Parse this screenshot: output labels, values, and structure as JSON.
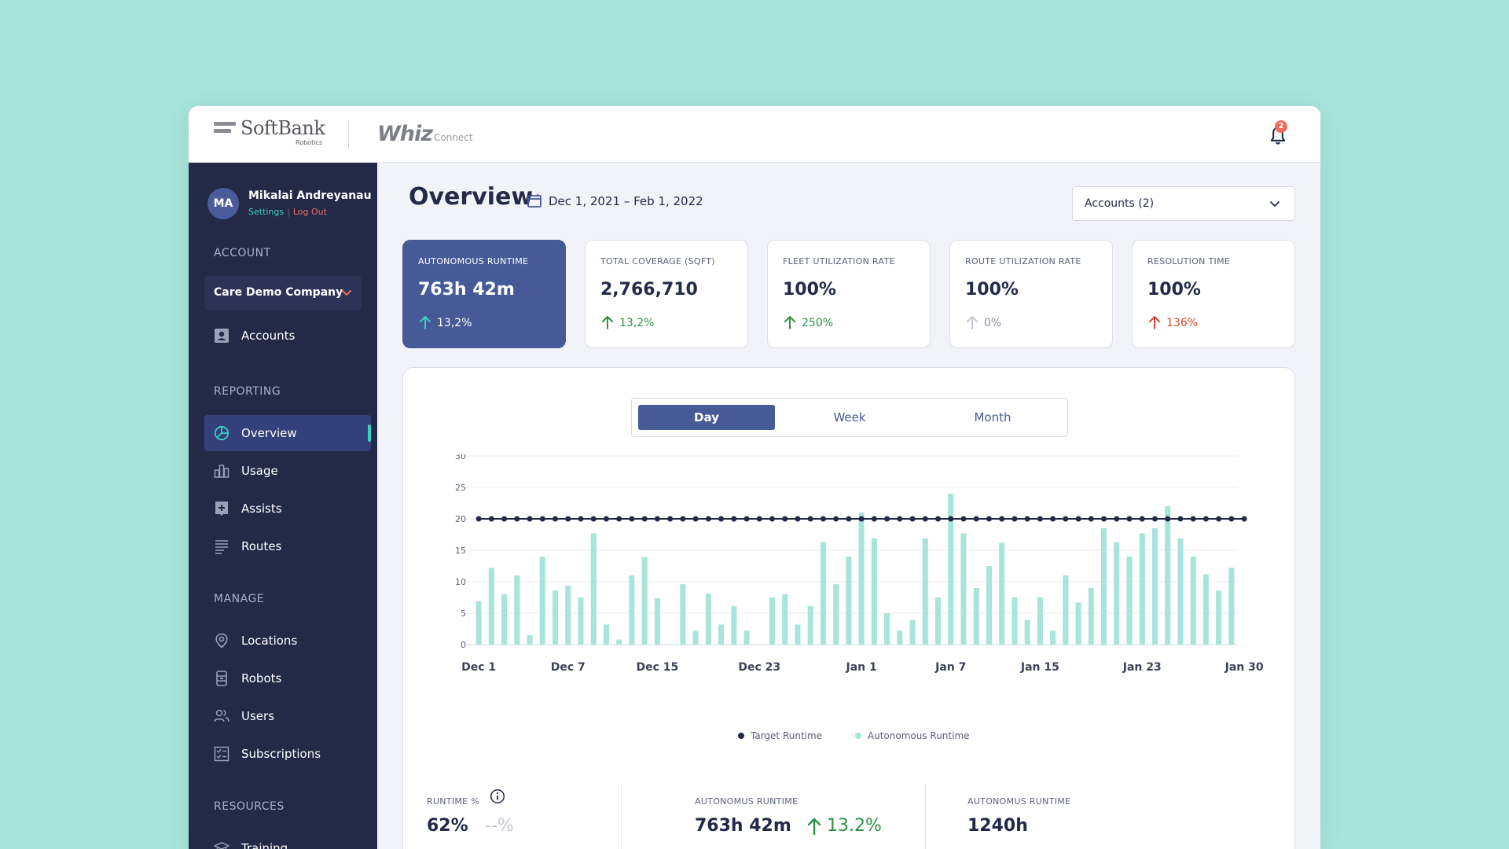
{
  "header": {
    "brand_name": "SoftBank",
    "brand_sub": "Robotics",
    "product_name": "Whiz",
    "product_sub": "Connect",
    "notification_count": "2"
  },
  "user": {
    "initials": "MA",
    "name": "Mikalai Andreyanau",
    "settings_label": "Settings",
    "logout_label": "Log Out"
  },
  "sidebar": {
    "account_title": "ACCOUNT",
    "company": "Care Demo Company",
    "accounts_label": "Accounts",
    "reporting_title": "REPORTING",
    "reporting_items": [
      {
        "label": "Overview",
        "icon": "pie-chart-icon"
      },
      {
        "label": "Usage",
        "icon": "bar-chart-icon"
      },
      {
        "label": "Assists",
        "icon": "plus-square-icon"
      },
      {
        "label": "Routes",
        "icon": "list-icon"
      }
    ],
    "manage_title": "MANAGE",
    "manage_items": [
      {
        "label": "Locations",
        "icon": "location-pin-icon"
      },
      {
        "label": "Robots",
        "icon": "robot-icon"
      },
      {
        "label": "Users",
        "icon": "users-icon"
      },
      {
        "label": "Subscriptions",
        "icon": "subscription-icon"
      }
    ],
    "resources_title": "RESOURCES",
    "training_label": "Training"
  },
  "main": {
    "title": "Overview",
    "date_range": "Dec 1, 2021 – Feb 1, 2022",
    "accounts_select": "Accounts (2)"
  },
  "kpis": [
    {
      "label": "AUTONOMOUS RUNTIME",
      "value": "763h 42m",
      "trend": "13,2%",
      "direction": "up",
      "color": "#ffffff",
      "active": true
    },
    {
      "label": "TOTAL COVERAGE (SQFT)",
      "value": "2,766,710",
      "trend": "13,2%",
      "direction": "up",
      "color": "#2e9146",
      "active": false
    },
    {
      "label": "FLEET UTILIZATION RATE",
      "value": "100%",
      "trend": "250%",
      "direction": "up",
      "color": "#2e9146",
      "active": false
    },
    {
      "label": "ROUTE UTILIZATION RATE",
      "value": "100%",
      "trend": "0%",
      "direction": "neutral",
      "color": "#8a8f9f",
      "active": false
    },
    {
      "label": "RESOLUTION TIME",
      "value": "100%",
      "trend": "136%",
      "direction": "up",
      "color": "#d94836",
      "active": false
    }
  ],
  "period_switch": {
    "day": "Day",
    "week": "Week",
    "month": "Month",
    "selected": "Day"
  },
  "chart_data": {
    "type": "bar",
    "ylim": [
      0,
      30
    ],
    "yticks": [
      0,
      5,
      10,
      15,
      20,
      25,
      30
    ],
    "xtick_labels": [
      "Dec 1",
      "Dec 7",
      "Dec 15",
      "Dec 23",
      "Jan 1",
      "Jan 7",
      "Jan 15",
      "Jan 23",
      "Jan 30"
    ],
    "xtick_positions": [
      0,
      7,
      14,
      22,
      30,
      37,
      44,
      52,
      60
    ],
    "grid": true,
    "legend_placement": "bottom-center",
    "series": [
      {
        "name": "Autonomous Runtime",
        "type": "bar",
        "color": "#a7e4d9",
        "values": [
          6.9,
          12.2,
          8.0,
          11.0,
          1.5,
          14.0,
          8.6,
          9.4,
          7.5,
          17.7,
          3.2,
          0.8,
          11.0,
          13.9,
          7.4,
          0,
          9.6,
          2.2,
          8.1,
          3.2,
          6.1,
          2.2,
          0,
          7.5,
          8.0,
          3.2,
          6.1,
          16.3,
          9.6,
          14.0,
          21.0,
          16.9,
          5.0,
          2.2,
          3.9,
          16.9,
          7.5,
          24.0,
          17.7,
          9.0,
          12.5,
          16.2,
          7.5,
          3.9,
          7.5,
          2.2,
          11.0,
          6.7,
          9.0,
          18.5,
          16.3,
          14.0,
          17.7,
          18.5,
          22.0,
          16.9,
          14.0,
          11.2,
          8.6,
          12.2
        ]
      },
      {
        "name": "Target Runtime",
        "type": "line",
        "color": "#222a47",
        "values": [
          20,
          20,
          20,
          20,
          20,
          20,
          20,
          20,
          20,
          20,
          20,
          20,
          20,
          20,
          20,
          20,
          20,
          20,
          20,
          20,
          20,
          20,
          20,
          20,
          20,
          20,
          20,
          20,
          20,
          20,
          20,
          20,
          20,
          20,
          20,
          20,
          20,
          20,
          20,
          20,
          20,
          20,
          20,
          20,
          20,
          20,
          20,
          20,
          20,
          20,
          20,
          20,
          20,
          20,
          20,
          20,
          20,
          20,
          20,
          20,
          20
        ]
      }
    ]
  },
  "legend": {
    "target": "Target Runtime",
    "autonomous": "Autonomous Runtime"
  },
  "stats": {
    "runtime_pct_label": "RUNTIME %",
    "runtime_pct_value": "62%",
    "runtime_pct_placeholder": "--%",
    "autonomus_runtime_label": "AUTONOMUS RUNTIME",
    "autonomus_runtime_value": "763h 42m",
    "autonomus_runtime_trend": "13.2%",
    "autonomus_runtime_label_2": "AUTONOMUS RUNTIME",
    "autonomus_runtime_value_2": "1240h"
  }
}
